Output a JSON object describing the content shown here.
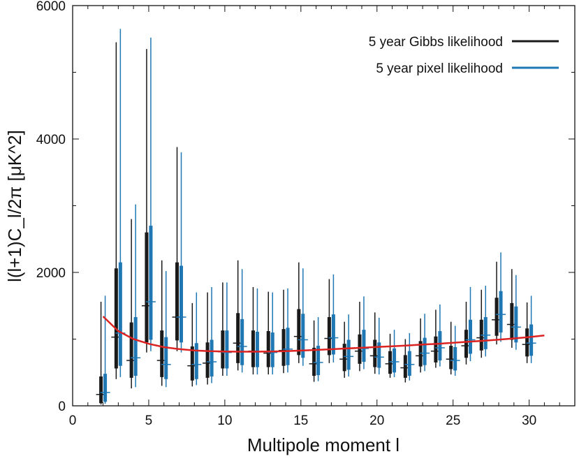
{
  "chart_data": {
    "type": "scatter",
    "xlabel": "Multipole moment  l",
    "ylabel": "l(l+1)C_l/2π [μK^2]",
    "xlim": [
      0,
      33
    ],
    "ylim": [
      0,
      6000
    ],
    "x_ticks": [
      "0",
      "5",
      "10",
      "15",
      "20",
      "25",
      "30"
    ],
    "y_ticks": [
      "0",
      "2000",
      "4000",
      "6000"
    ],
    "grid": false,
    "legend_position": "top-right",
    "colors": {
      "gibbs": "#1a1a1a",
      "pixel": "#1f77b4",
      "model": "#dd2222"
    },
    "series": [
      {
        "name": "5 year Gibbs likelihood",
        "style": "error-bars",
        "points": [
          {
            "l": 2,
            "center": 170,
            "box": [
              40,
              440
            ],
            "whisker": [
              20,
              1560
            ]
          },
          {
            "l": 3,
            "center": 1030,
            "box": [
              560,
              2060
            ],
            "whisker": [
              400,
              5450
            ]
          },
          {
            "l": 4,
            "center": 680,
            "box": [
              420,
              1250
            ],
            "whisker": [
              260,
              2800
            ]
          },
          {
            "l": 5,
            "center": 1500,
            "box": [
              950,
              2600
            ],
            "whisker": [
              800,
              5350
            ]
          },
          {
            "l": 6,
            "center": 680,
            "box": [
              430,
              1130
            ],
            "whisker": [
              300,
              2180
            ]
          },
          {
            "l": 7,
            "center": 1330,
            "box": [
              980,
              2150
            ],
            "whisker": [
              820,
              3880
            ]
          },
          {
            "l": 8,
            "center": 600,
            "box": [
              380,
              890
            ],
            "whisker": [
              290,
              1540
            ]
          },
          {
            "l": 9,
            "center": 640,
            "box": [
              420,
              950
            ],
            "whisker": [
              320,
              1700
            ]
          },
          {
            "l": 10,
            "center": 810,
            "box": [
              560,
              1130
            ],
            "whisker": [
              450,
              1850
            ]
          },
          {
            "l": 11,
            "center": 940,
            "box": [
              640,
              1390
            ],
            "whisker": [
              530,
              2180
            ]
          },
          {
            "l": 12,
            "center": 820,
            "box": [
              580,
              1130
            ],
            "whisker": [
              470,
              1780
            ]
          },
          {
            "l": 13,
            "center": 790,
            "box": [
              580,
              1120
            ],
            "whisker": [
              470,
              1710
            ]
          },
          {
            "l": 14,
            "center": 830,
            "box": [
              600,
              1150
            ],
            "whisker": [
              490,
              1740
            ]
          },
          {
            "l": 15,
            "center": 1040,
            "box": [
              760,
              1450
            ],
            "whisker": [
              640,
              2150
            ]
          },
          {
            "l": 16,
            "center": 630,
            "box": [
              450,
              870
            ],
            "whisker": [
              360,
              1280
            ]
          },
          {
            "l": 17,
            "center": 1010,
            "box": [
              760,
              1330
            ],
            "whisker": [
              640,
              1900
            ]
          },
          {
            "l": 18,
            "center": 700,
            "box": [
              520,
              930
            ],
            "whisker": [
              420,
              1260
            ]
          },
          {
            "l": 19,
            "center": 820,
            "box": [
              630,
              1070
            ],
            "whisker": [
              520,
              1560
            ]
          },
          {
            "l": 20,
            "center": 750,
            "box": [
              580,
              990
            ],
            "whisker": [
              480,
              1400
            ]
          },
          {
            "l": 21,
            "center": 630,
            "box": [
              480,
              820
            ],
            "whisker": [
              420,
              1080
            ]
          },
          {
            "l": 22,
            "center": 570,
            "box": [
              420,
              760
            ],
            "whisker": [
              350,
              1000
            ]
          },
          {
            "l": 23,
            "center": 750,
            "box": [
              590,
              970
            ],
            "whisker": [
              500,
              1310
            ]
          },
          {
            "l": 24,
            "center": 820,
            "box": [
              650,
              1040
            ],
            "whisker": [
              570,
              1440
            ]
          },
          {
            "l": 25,
            "center": 700,
            "box": [
              550,
              900
            ],
            "whisker": [
              470,
              1260
            ]
          },
          {
            "l": 26,
            "center": 900,
            "box": [
              720,
              1140
            ],
            "whisker": [
              620,
              1560
            ]
          },
          {
            "l": 27,
            "center": 1020,
            "box": [
              830,
              1290
            ],
            "whisker": [
              720,
              1740
            ]
          },
          {
            "l": 28,
            "center": 1290,
            "box": [
              1050,
              1620
            ],
            "whisker": [
              920,
              2160
            ]
          },
          {
            "l": 29,
            "center": 1220,
            "box": [
              990,
              1540
            ],
            "whisker": [
              870,
              2050
            ]
          },
          {
            "l": 30,
            "center": 920,
            "box": [
              740,
              1160
            ],
            "whisker": [
              640,
              1550
            ]
          }
        ]
      },
      {
        "name": "5 year pixel likelihood",
        "style": "error-bars",
        "points": [
          {
            "l": 2,
            "center": 200,
            "box": [
              60,
              480
            ],
            "whisker": [
              30,
              1650
            ]
          },
          {
            "l": 3,
            "center": 1090,
            "box": [
              600,
              2150
            ],
            "whisker": [
              430,
              5650
            ]
          },
          {
            "l": 4,
            "center": 720,
            "box": [
              450,
              1330
            ],
            "whisker": [
              280,
              3020
            ]
          },
          {
            "l": 5,
            "center": 1560,
            "box": [
              990,
              2700
            ],
            "whisker": [
              820,
              5520
            ]
          },
          {
            "l": 6,
            "center": 620,
            "box": [
              400,
              1030
            ],
            "whisker": [
              280,
              2020
            ]
          },
          {
            "l": 7,
            "center": 1330,
            "box": [
              950,
              2100
            ],
            "whisker": [
              800,
              3800
            ]
          },
          {
            "l": 8,
            "center": 620,
            "box": [
              400,
              940
            ],
            "whisker": [
              310,
              1700
            ]
          },
          {
            "l": 9,
            "center": 660,
            "box": [
              440,
              990
            ],
            "whisker": [
              340,
              1780
            ]
          },
          {
            "l": 10,
            "center": 800,
            "box": [
              560,
              1130
            ],
            "whisker": [
              450,
              1850
            ]
          },
          {
            "l": 11,
            "center": 890,
            "box": [
              610,
              1300
            ],
            "whisker": [
              500,
              2050
            ]
          },
          {
            "l": 12,
            "center": 810,
            "box": [
              580,
              1110
            ],
            "whisker": [
              470,
              1760
            ]
          },
          {
            "l": 13,
            "center": 800,
            "box": [
              580,
              1100
            ],
            "whisker": [
              470,
              1700
            ]
          },
          {
            "l": 14,
            "center": 850,
            "box": [
              610,
              1170
            ],
            "whisker": [
              500,
              1760
            ]
          },
          {
            "l": 15,
            "center": 990,
            "box": [
              720,
              1380
            ],
            "whisker": [
              600,
              2060
            ]
          },
          {
            "l": 16,
            "center": 650,
            "box": [
              460,
              900
            ],
            "whisker": [
              370,
              1330
            ]
          },
          {
            "l": 17,
            "center": 1020,
            "box": [
              770,
              1370
            ],
            "whisker": [
              650,
              1970
            ]
          },
          {
            "l": 18,
            "center": 740,
            "box": [
              540,
              990
            ],
            "whisker": [
              440,
              1370
            ]
          },
          {
            "l": 19,
            "center": 860,
            "box": [
              660,
              1140
            ],
            "whisker": [
              550,
              1640
            ]
          },
          {
            "l": 20,
            "center": 730,
            "box": [
              570,
              950
            ],
            "whisker": [
              470,
              1320
            ]
          },
          {
            "l": 21,
            "center": 660,
            "box": [
              500,
              860
            ],
            "whisker": [
              430,
              1140
            ]
          },
          {
            "l": 22,
            "center": 620,
            "box": [
              450,
              820
            ],
            "whisker": [
              380,
              1090
            ]
          },
          {
            "l": 23,
            "center": 790,
            "box": [
              610,
              1020
            ],
            "whisker": [
              520,
              1380
            ]
          },
          {
            "l": 24,
            "center": 870,
            "box": [
              680,
              1120
            ],
            "whisker": [
              590,
              1520
            ]
          },
          {
            "l": 25,
            "center": 680,
            "box": [
              530,
              880
            ],
            "whisker": [
              450,
              1200
            ]
          },
          {
            "l": 26,
            "center": 990,
            "box": [
              780,
              1290
            ],
            "whisker": [
              670,
              1780
            ]
          },
          {
            "l": 27,
            "center": 1060,
            "box": [
              850,
              1330
            ],
            "whisker": [
              740,
              1800
            ]
          },
          {
            "l": 28,
            "center": 1370,
            "box": [
              1100,
              1720
            ],
            "whisker": [
              960,
              2300
            ]
          },
          {
            "l": 29,
            "center": 1180,
            "box": [
              950,
              1490
            ],
            "whisker": [
              840,
              1960
            ]
          },
          {
            "l": 30,
            "center": 940,
            "box": [
              750,
              1220
            ],
            "whisker": [
              640,
              1650
            ]
          }
        ]
      },
      {
        "style": "line",
        "x": [
          2,
          3,
          4,
          5,
          6,
          7,
          8,
          9,
          10,
          11,
          12,
          13,
          14,
          15,
          16,
          17,
          18,
          19,
          20,
          21,
          22,
          23,
          24,
          25,
          26,
          27,
          28,
          29,
          30,
          31
        ],
        "y": [
          1340,
          1120,
          1000,
          930,
          880,
          850,
          830,
          820,
          815,
          812,
          812,
          815,
          820,
          828,
          838,
          848,
          860,
          870,
          882,
          893,
          905,
          918,
          930,
          945,
          960,
          975,
          992,
          1010,
          1030,
          1055
        ]
      }
    ]
  }
}
